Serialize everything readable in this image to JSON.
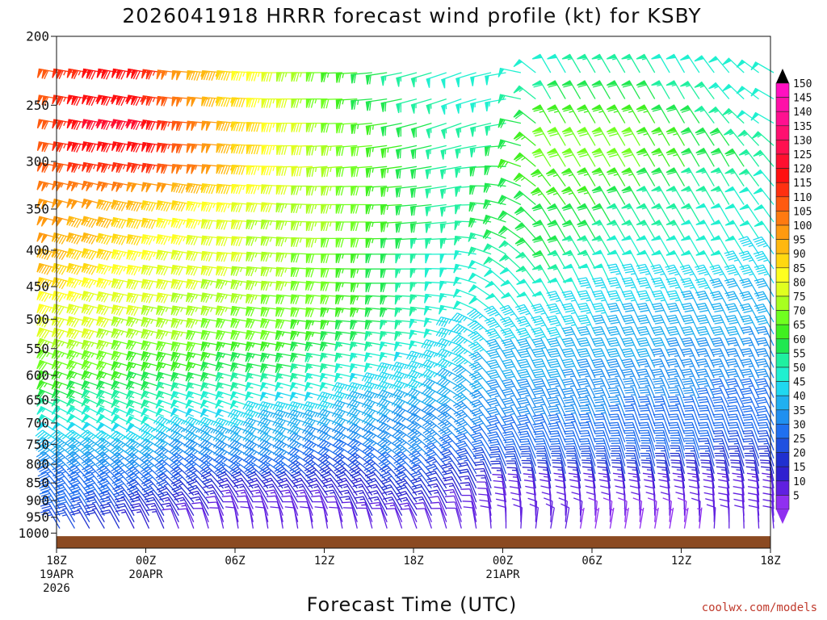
{
  "title": "2026041918 HRRR forecast wind profile (kt) for KSBY",
  "xlabel": "Forecast Time (UTC)",
  "credit": "coolwx.com/models",
  "chart_data": {
    "type": "wind-barb-profile",
    "title": "2026041918 HRRR forecast wind profile (kt) for KSBY",
    "xlabel": "Forecast Time (UTC)",
    "ylabel": "",
    "units": "kt",
    "forecast_hours": [
      0,
      48
    ],
    "y_scale": "log-pressure",
    "ylim_hpa": [
      1050,
      200
    ],
    "y_ticks": [
      200,
      250,
      300,
      350,
      400,
      450,
      500,
      550,
      600,
      650,
      700,
      750,
      800,
      850,
      900,
      950,
      1000
    ],
    "x_ticks": [
      {
        "hour": 0,
        "lines": [
          "18Z",
          "19APR",
          "2026"
        ]
      },
      {
        "hour": 6,
        "lines": [
          "00Z",
          "20APR"
        ]
      },
      {
        "hour": 12,
        "lines": [
          "06Z"
        ]
      },
      {
        "hour": 18,
        "lines": [
          "12Z"
        ]
      },
      {
        "hour": 24,
        "lines": [
          "18Z"
        ]
      },
      {
        "hour": 30,
        "lines": [
          "00Z",
          "21APR"
        ]
      },
      {
        "hour": 36,
        "lines": [
          "06Z"
        ]
      },
      {
        "hour": 42,
        "lines": [
          "12Z"
        ]
      },
      {
        "hour": 48,
        "lines": [
          "18Z"
        ]
      }
    ],
    "ground": {
      "color": "#8B4A22",
      "pressure_hpa": 1010
    },
    "speed_grid": {
      "hours": [
        0,
        3,
        6,
        9,
        12,
        15,
        18,
        21,
        24,
        27,
        30,
        33,
        36,
        39,
        42,
        45,
        48
      ],
      "levels_hpa": [
        225,
        265,
        300,
        335,
        370,
        410,
        445,
        475,
        510,
        545,
        585,
        625,
        665,
        705,
        745,
        785,
        825,
        865,
        905,
        945,
        985
      ],
      "speeds": [
        [
          110,
          120,
          120,
          100,
          90,
          80,
          70,
          60,
          55,
          50,
          50,
          50,
          55,
          55,
          50,
          50,
          50
        ],
        [
          110,
          125,
          125,
          110,
          95,
          85,
          75,
          65,
          60,
          55,
          55,
          65,
          65,
          65,
          60,
          55,
          50
        ],
        [
          110,
          120,
          120,
          110,
          95,
          85,
          75,
          70,
          60,
          55,
          60,
          70,
          70,
          70,
          65,
          60,
          55
        ],
        [
          100,
          100,
          95,
          90,
          85,
          80,
          75,
          70,
          60,
          55,
          60,
          65,
          65,
          60,
          55,
          55,
          50
        ],
        [
          100,
          95,
          90,
          85,
          80,
          75,
          75,
          70,
          60,
          55,
          60,
          60,
          60,
          55,
          55,
          50,
          50
        ],
        [
          95,
          90,
          85,
          80,
          80,
          75,
          70,
          65,
          55,
          50,
          55,
          60,
          55,
          50,
          50,
          50,
          45
        ],
        [
          90,
          85,
          80,
          80,
          75,
          75,
          70,
          65,
          55,
          50,
          50,
          55,
          50,
          45,
          45,
          45,
          45
        ],
        [
          85,
          80,
          80,
          75,
          75,
          70,
          70,
          65,
          55,
          50,
          50,
          50,
          45,
          45,
          45,
          40,
          40
        ],
        [
          80,
          80,
          75,
          75,
          70,
          70,
          65,
          60,
          55,
          45,
          45,
          45,
          45,
          40,
          40,
          40,
          40
        ],
        [
          75,
          75,
          70,
          70,
          65,
          65,
          60,
          55,
          50,
          45,
          45,
          45,
          40,
          40,
          40,
          40,
          35
        ],
        [
          70,
          70,
          65,
          65,
          60,
          60,
          55,
          50,
          45,
          45,
          40,
          40,
          40,
          40,
          35,
          35,
          35
        ],
        [
          65,
          60,
          60,
          55,
          55,
          50,
          50,
          45,
          45,
          40,
          40,
          40,
          35,
          35,
          35,
          35,
          35
        ],
        [
          55,
          55,
          55,
          50,
          50,
          45,
          45,
          40,
          40,
          40,
          35,
          35,
          35,
          35,
          35,
          30,
          30
        ],
        [
          50,
          50,
          50,
          45,
          45,
          40,
          40,
          40,
          35,
          35,
          35,
          35,
          35,
          30,
          30,
          30,
          30
        ],
        [
          45,
          45,
          45,
          40,
          40,
          40,
          35,
          35,
          35,
          35,
          30,
          30,
          30,
          30,
          30,
          30,
          30
        ],
        [
          40,
          40,
          40,
          35,
          35,
          35,
          30,
          30,
          35,
          30,
          30,
          30,
          30,
          30,
          30,
          25,
          25
        ],
        [
          35,
          35,
          35,
          30,
          30,
          30,
          25,
          25,
          30,
          25,
          25,
          25,
          25,
          25,
          20,
          20,
          20
        ],
        [
          30,
          30,
          30,
          25,
          20,
          20,
          20,
          20,
          25,
          20,
          15,
          15,
          15,
          15,
          15,
          15,
          15
        ],
        [
          30,
          30,
          25,
          20,
          15,
          15,
          15,
          15,
          20,
          15,
          10,
          10,
          10,
          10,
          10,
          10,
          10
        ],
        [
          30,
          25,
          20,
          15,
          10,
          10,
          10,
          15,
          15,
          10,
          10,
          10,
          10,
          10,
          10,
          10,
          10
        ],
        [
          25,
          20,
          15,
          10,
          10,
          10,
          10,
          10,
          10,
          10,
          10,
          10,
          5,
          5,
          5,
          10,
          10
        ]
      ],
      "directions_deg": [
        [
          280,
          280,
          280,
          275,
          275,
          270,
          270,
          265,
          255,
          250,
          260,
          330,
          330,
          330,
          330,
          320,
          300
        ],
        [
          280,
          280,
          280,
          275,
          275,
          270,
          270,
          265,
          255,
          250,
          260,
          330,
          330,
          330,
          330,
          320,
          300
        ],
        [
          280,
          280,
          280,
          275,
          275,
          270,
          265,
          265,
          260,
          260,
          270,
          330,
          330,
          330,
          330,
          330,
          320
        ],
        [
          285,
          285,
          280,
          280,
          275,
          275,
          270,
          270,
          265,
          260,
          280,
          320,
          330,
          330,
          330,
          330,
          320
        ],
        [
          285,
          285,
          280,
          280,
          275,
          275,
          270,
          270,
          265,
          265,
          290,
          330,
          330,
          330,
          330,
          330,
          325
        ],
        [
          285,
          285,
          280,
          280,
          275,
          275,
          270,
          270,
          270,
          270,
          300,
          330,
          330,
          330,
          330,
          330,
          325
        ],
        [
          285,
          285,
          280,
          280,
          280,
          275,
          275,
          270,
          270,
          275,
          310,
          330,
          335,
          335,
          330,
          330,
          330
        ],
        [
          285,
          285,
          280,
          280,
          280,
          275,
          275,
          275,
          275,
          280,
          320,
          330,
          335,
          335,
          335,
          330,
          330
        ],
        [
          285,
          285,
          285,
          280,
          280,
          280,
          275,
          275,
          275,
          285,
          320,
          330,
          335,
          335,
          335,
          335,
          330
        ],
        [
          290,
          285,
          285,
          280,
          280,
          280,
          280,
          280,
          280,
          290,
          325,
          330,
          335,
          335,
          335,
          335,
          335
        ],
        [
          290,
          290,
          285,
          285,
          285,
          280,
          280,
          280,
          285,
          295,
          330,
          335,
          335,
          335,
          335,
          335,
          335
        ],
        [
          290,
          290,
          290,
          285,
          285,
          285,
          285,
          285,
          290,
          300,
          330,
          335,
          335,
          335,
          335,
          335,
          335
        ],
        [
          295,
          295,
          290,
          290,
          290,
          285,
          285,
          290,
          295,
          305,
          330,
          335,
          335,
          340,
          340,
          335,
          335
        ],
        [
          300,
          300,
          295,
          295,
          290,
          290,
          290,
          295,
          300,
          310,
          330,
          335,
          340,
          340,
          340,
          340,
          335
        ],
        [
          305,
          305,
          300,
          300,
          295,
          295,
          295,
          300,
          305,
          315,
          330,
          335,
          340,
          340,
          340,
          340,
          340
        ],
        [
          310,
          310,
          305,
          305,
          300,
          300,
          300,
          305,
          310,
          320,
          335,
          340,
          340,
          345,
          345,
          340,
          340
        ],
        [
          315,
          315,
          310,
          310,
          305,
          305,
          310,
          310,
          315,
          325,
          340,
          345,
          345,
          345,
          345,
          345,
          345
        ],
        [
          320,
          320,
          315,
          315,
          320,
          320,
          320,
          320,
          320,
          330,
          345,
          350,
          350,
          350,
          350,
          350,
          350
        ],
        [
          325,
          325,
          320,
          320,
          330,
          330,
          330,
          330,
          325,
          335,
          350,
          355,
          355,
          355,
          355,
          355,
          355
        ],
        [
          330,
          330,
          330,
          330,
          340,
          340,
          340,
          335,
          330,
          340,
          355,
          0,
          0,
          0,
          0,
          355,
          355
        ],
        [
          330,
          330,
          335,
          340,
          350,
          350,
          350,
          345,
          340,
          345,
          0,
          10,
          10,
          10,
          10,
          0,
          355
        ]
      ]
    },
    "colorbar": {
      "levels": [
        150,
        145,
        140,
        135,
        130,
        125,
        120,
        115,
        110,
        105,
        100,
        95,
        90,
        85,
        80,
        75,
        70,
        65,
        60,
        55,
        50,
        45,
        40,
        35,
        30,
        25,
        20,
        15,
        10,
        5
      ],
      "colors": [
        "#ff10c0",
        "#ff10a8",
        "#ff1090",
        "#ff1070",
        "#ff1050",
        "#ff1030",
        "#ff1010",
        "#ff3010",
        "#ff5a10",
        "#ff7a10",
        "#ff9a10",
        "#ffb810",
        "#ffd810",
        "#ffff20",
        "#e0ff20",
        "#a8ff20",
        "#70ff20",
        "#40f020",
        "#20e850",
        "#20f0a0",
        "#20f0d0",
        "#20d8f0",
        "#20b0f0",
        "#2090f0",
        "#2070f0",
        "#2050e0",
        "#2030d0",
        "#3020d0",
        "#6020e0",
        "#9030f0"
      ],
      "top_arrow_color": "#000000",
      "bottom_arrow_color": "#9030f0"
    }
  }
}
